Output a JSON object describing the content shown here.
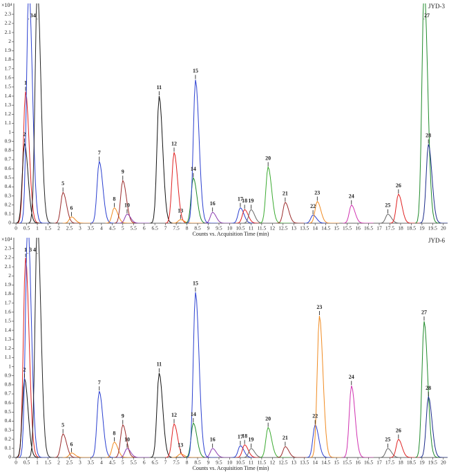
{
  "chart_data": [
    {
      "type": "chromatogram",
      "title": "JYD-3",
      "y_unit": "×10⁴",
      "xlabel": "Counts vs. Acquisition Time (min)",
      "xlim": [
        -0.1,
        20.2
      ],
      "ylim": [
        0,
        2.42
      ],
      "xticks": [
        0,
        0.5,
        1,
        1.5,
        2,
        2.5,
        3,
        3.5,
        4,
        4.5,
        5,
        5.5,
        6,
        6.5,
        7,
        7.5,
        8,
        8.5,
        9,
        9.5,
        10,
        10.5,
        11,
        11.5,
        12,
        12.5,
        13,
        13.5,
        14,
        14.5,
        15,
        15.5,
        16,
        16.5,
        17,
        17.5,
        18,
        18.5,
        19,
        19.5,
        20
      ],
      "yticks": [
        0,
        0.1,
        0.2,
        0.3,
        0.4,
        0.5,
        0.6,
        0.7,
        0.8,
        0.9,
        1,
        1.1,
        1.2,
        1.3,
        1.4,
        1.5,
        1.6,
        1.7,
        1.8,
        1.9,
        2,
        2.1,
        2.2,
        2.3
      ],
      "peaks": {
        "labels": [
          "1",
          "2",
          "3",
          "4",
          "5",
          "6",
          "7",
          "8",
          "9",
          "10",
          "11",
          "12",
          "13",
          "14",
          "15",
          "16",
          "17",
          "18",
          "19",
          "20",
          "21",
          "22",
          "23",
          "24",
          "25",
          "26",
          "27",
          "28"
        ],
        "x": [
          0.45,
          0.4,
          0.6,
          1.0,
          2.2,
          2.6,
          3.9,
          4.6,
          5.0,
          5.2,
          6.7,
          7.4,
          7.7,
          8.3,
          8.4,
          9.2,
          10.5,
          10.7,
          11.0,
          11.8,
          12.6,
          13.9,
          14.1,
          15.7,
          17.4,
          17.9,
          19.1,
          19.3
        ],
        "values": [
          1.45,
          0.88,
          2.6,
          2.6,
          0.34,
          0.07,
          0.68,
          0.17,
          0.47,
          0.1,
          1.4,
          0.78,
          0.04,
          0.5,
          1.58,
          0.12,
          0.17,
          0.15,
          0.15,
          0.62,
          0.23,
          0.09,
          0.24,
          0.2,
          0.1,
          0.32,
          2.6,
          0.87
        ],
        "colors": [
          "#e02020",
          "#111111",
          "#2a3fd0",
          "#222222",
          "#9a2b2b",
          "#f08a20",
          "#2a3fd0",
          "#f08a20",
          "#9a2b2b",
          "#8a3ab0",
          "#111111",
          "#e02020",
          "#f08a20",
          "#1f8a2a",
          "#2a3fd0",
          "#8a3ab0",
          "#2a3fd0",
          "#e02020",
          "#666666",
          "#3aaa30",
          "#9a2b2b",
          "#2a3fd0",
          "#f08a20",
          "#d030b0",
          "#666666",
          "#e02020",
          "#1f8a2a",
          "#1a2a8a"
        ]
      }
    },
    {
      "type": "chromatogram",
      "title": "JYD-6",
      "y_unit": "×10⁴",
      "xlabel": "Counts vs. Acquisition Time (min)",
      "xlim": [
        -0.1,
        20.2
      ],
      "ylim": [
        0,
        2.42
      ],
      "xticks": [
        0,
        0.5,
        1,
        1.5,
        2,
        2.5,
        3,
        3.5,
        4,
        4.5,
        5,
        5.5,
        6,
        6.5,
        7,
        7.5,
        8,
        8.5,
        9,
        9.5,
        10,
        10.5,
        11,
        11.5,
        12,
        12.5,
        13,
        13.5,
        14,
        14.5,
        15,
        15.5,
        16,
        16.5,
        17,
        17.5,
        18,
        18.5,
        19,
        19.5,
        20
      ],
      "yticks": [
        0,
        0.1,
        0.2,
        0.3,
        0.4,
        0.5,
        0.6,
        0.7,
        0.8,
        0.9,
        1,
        1.1,
        1.2,
        1.3,
        1.4,
        1.5,
        1.6,
        1.7,
        1.8,
        1.9,
        2,
        2.1,
        2.2,
        2.3
      ],
      "peaks": {
        "labels": [
          "1",
          "2",
          "3",
          "4",
          "5",
          "6",
          "7",
          "8",
          "9",
          "10",
          "11",
          "12",
          "13",
          "14",
          "15",
          "16",
          "17",
          "18",
          "19",
          "20",
          "21",
          "22",
          "23",
          "24",
          "25",
          "26",
          "27",
          "28"
        ],
        "x": [
          0.45,
          0.4,
          0.55,
          1.0,
          2.2,
          2.6,
          3.9,
          4.6,
          5.0,
          5.2,
          6.7,
          7.4,
          7.7,
          8.3,
          8.4,
          9.2,
          10.5,
          10.7,
          11.0,
          11.8,
          12.6,
          14.0,
          14.2,
          15.7,
          17.4,
          17.9,
          19.1,
          19.3
        ],
        "values": [
          2.2,
          0.87,
          2.6,
          2.6,
          0.26,
          0.05,
          0.73,
          0.17,
          0.36,
          0.1,
          0.93,
          0.37,
          0.04,
          0.38,
          1.82,
          0.1,
          0.13,
          0.14,
          0.1,
          0.33,
          0.12,
          0.36,
          1.56,
          0.79,
          0.1,
          0.2,
          1.5,
          0.67
        ],
        "colors": [
          "#e02020",
          "#111111",
          "#2a3fd0",
          "#222222",
          "#9a2b2b",
          "#f08a20",
          "#2a3fd0",
          "#f08a20",
          "#9a2b2b",
          "#8a3ab0",
          "#111111",
          "#e02020",
          "#f08a20",
          "#1f8a2a",
          "#2a3fd0",
          "#8a3ab0",
          "#2a3fd0",
          "#e02020",
          "#666666",
          "#3aaa30",
          "#9a2b2b",
          "#2a3fd0",
          "#f08a20",
          "#d030b0",
          "#666666",
          "#e02020",
          "#1f8a2a",
          "#1a2a8a"
        ]
      }
    }
  ]
}
